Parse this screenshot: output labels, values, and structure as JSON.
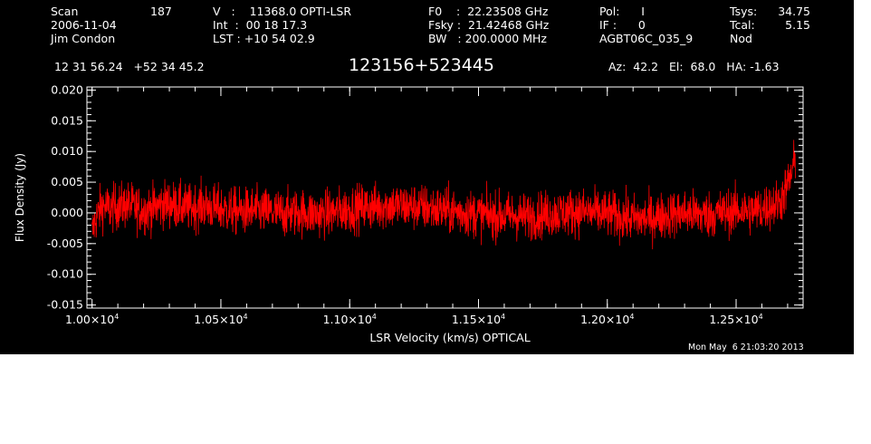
{
  "header": {
    "col1": {
      "scan_label": "Scan",
      "scan_value": "187",
      "date": "2006-11-04",
      "observer": "Jim Condon"
    },
    "col2": {
      "v_line": "V   :    11368.0 OPTI-LSR",
      "int_line": "Int  :  00 18 17.3",
      "lst_line": "LST : +10 54 02.9"
    },
    "col3": {
      "f0_line": "F0    :  22.23508 GHz",
      "fsky_line": "Fsky :  21.42468 GHz",
      "bw_line": "BW   : 200.0000 MHz"
    },
    "col4": {
      "pol_line": "Pol:      I",
      "if_line": "IF :      0",
      "project": "AGBT06C_035_9"
    },
    "col5": {
      "tsys_label": "Tsys:",
      "tsys_value": "34.75",
      "tcal_label": "Tcal:",
      "tcal_value": "5.15",
      "mode": "Nod"
    },
    "coords": "12 31 56.24   +52 34 45.2",
    "source": "123156+523445",
    "azel": "Az:  42.2   El:  68.0   HA: -1.63"
  },
  "timestamp": "Mon May  6 21:03:20 2013",
  "colors": {
    "background": "#000000",
    "axes": "#ffffff",
    "trace": "#ff0000"
  },
  "chart_data": {
    "type": "line",
    "xlabel": "LSR Velocity (km/s) OPTICAL",
    "ylabel": "Flux Density (Jy)",
    "xlim": [
      9980,
      12760
    ],
    "ylim": [
      -0.0155,
      0.0205
    ],
    "x_ticks": [
      {
        "value": 10000,
        "mant": "1.00",
        "exp": "4"
      },
      {
        "value": 10500,
        "mant": "1.05",
        "exp": "4"
      },
      {
        "value": 11000,
        "mant": "1.10",
        "exp": "4"
      },
      {
        "value": 11500,
        "mant": "1.15",
        "exp": "4"
      },
      {
        "value": 12000,
        "mant": "1.20",
        "exp": "4"
      },
      {
        "value": 12500,
        "mant": "1.25",
        "exp": "4"
      }
    ],
    "y_ticks": [
      {
        "value": 0.02,
        "label": "0.020"
      },
      {
        "value": 0.015,
        "label": "0.015"
      },
      {
        "value": 0.01,
        "label": "0.010"
      },
      {
        "value": 0.005,
        "label": "0.005"
      },
      {
        "value": 0.0,
        "label": "0.000"
      },
      {
        "value": -0.005,
        "label": "-0.005"
      },
      {
        "value": -0.01,
        "label": "-0.010"
      },
      {
        "value": -0.015,
        "label": "-0.015"
      }
    ],
    "x_minor_step": 100,
    "y_minor_step": 0.001,
    "series": [
      {
        "x": [
          10000,
          10010,
          10020,
          10030,
          10040,
          10050,
          10060,
          10070,
          10080,
          10090,
          10100,
          10120,
          10140,
          10160,
          10180,
          10200,
          10225,
          10250,
          10275,
          10300,
          10325,
          10350,
          10375,
          10400,
          10425,
          10450,
          10475,
          10500,
          10525,
          10550,
          10575,
          10600,
          10625,
          10650,
          10675,
          10700,
          10725,
          10750,
          10775,
          10800,
          10825,
          10850,
          10875,
          10900,
          10925,
          10950,
          10975,
          11000,
          11025,
          11050,
          11075,
          11100,
          11125,
          11150,
          11175,
          11200,
          11225,
          11250,
          11275,
          11300,
          11325,
          11350,
          11375,
          11400,
          11425,
          11450,
          11475,
          11500,
          11525,
          11550,
          11575,
          11600,
          11625,
          11650,
          11675,
          11700,
          11725,
          11750,
          11775,
          11800,
          11825,
          11850,
          11875,
          11900,
          11925,
          11950,
          11975,
          12000,
          12025,
          12050,
          12075,
          12100,
          12125,
          12150,
          12175,
          12200,
          12225,
          12250,
          12275,
          12300,
          12325,
          12350,
          12375,
          12400,
          12425,
          12450,
          12475,
          12500,
          12525,
          12550,
          12575,
          12600,
          12620,
          12640,
          12660,
          12680,
          12700,
          12720,
          12730
        ],
        "y": [
          -0.0035,
          -0.0015,
          -0.0005,
          0.0005,
          0.0012,
          0.001,
          0.0008,
          0.0006,
          0.0008,
          0.001,
          0.001,
          0.0012,
          0.0013,
          0.001,
          0.0006,
          0.0004,
          0.0006,
          0.001,
          0.0014,
          0.0015,
          0.0012,
          0.001,
          0.0008,
          0.001,
          0.0012,
          0.001,
          0.0008,
          0.0006,
          0.0004,
          0.0003,
          0.0002,
          0.0003,
          0.0004,
          0.0003,
          0.0002,
          0.0001,
          0.0,
          -0.0001,
          0.0,
          0.0001,
          0.0,
          -0.0001,
          -0.0002,
          -0.0001,
          0.0,
          0.0002,
          0.0004,
          0.0006,
          0.0008,
          0.0009,
          0.001,
          0.001,
          0.0011,
          0.0012,
          0.0012,
          0.0011,
          0.001,
          0.001,
          0.0009,
          0.0008,
          0.0006,
          0.0005,
          0.0004,
          0.0003,
          0.0001,
          0.0,
          -0.0001,
          -0.0002,
          -0.0003,
          -0.0004,
          -0.0005,
          -0.0005,
          -0.0004,
          -0.0005,
          -0.0006,
          -0.0005,
          -0.0004,
          -0.0003,
          -0.0002,
          -0.0001,
          0.0,
          0.0001,
          0.0002,
          0.0002,
          0.0001,
          0.0,
          -0.0001,
          -0.0002,
          -0.0004,
          -0.0006,
          -0.0008,
          -0.0009,
          -0.001,
          -0.0009,
          -0.0008,
          -0.0006,
          -0.0004,
          -0.0002,
          -0.0001,
          0.0,
          -0.0001,
          -0.0002,
          -0.0003,
          -0.0002,
          -0.0001,
          0.0,
          0.0002,
          0.0003,
          0.0004,
          0.0003,
          0.0004,
          0.0006,
          0.001,
          0.0012,
          0.0015,
          0.0025,
          0.0045,
          0.007,
          0.009
        ],
        "noise_amplitude_jy": 0.0035
      }
    ]
  }
}
